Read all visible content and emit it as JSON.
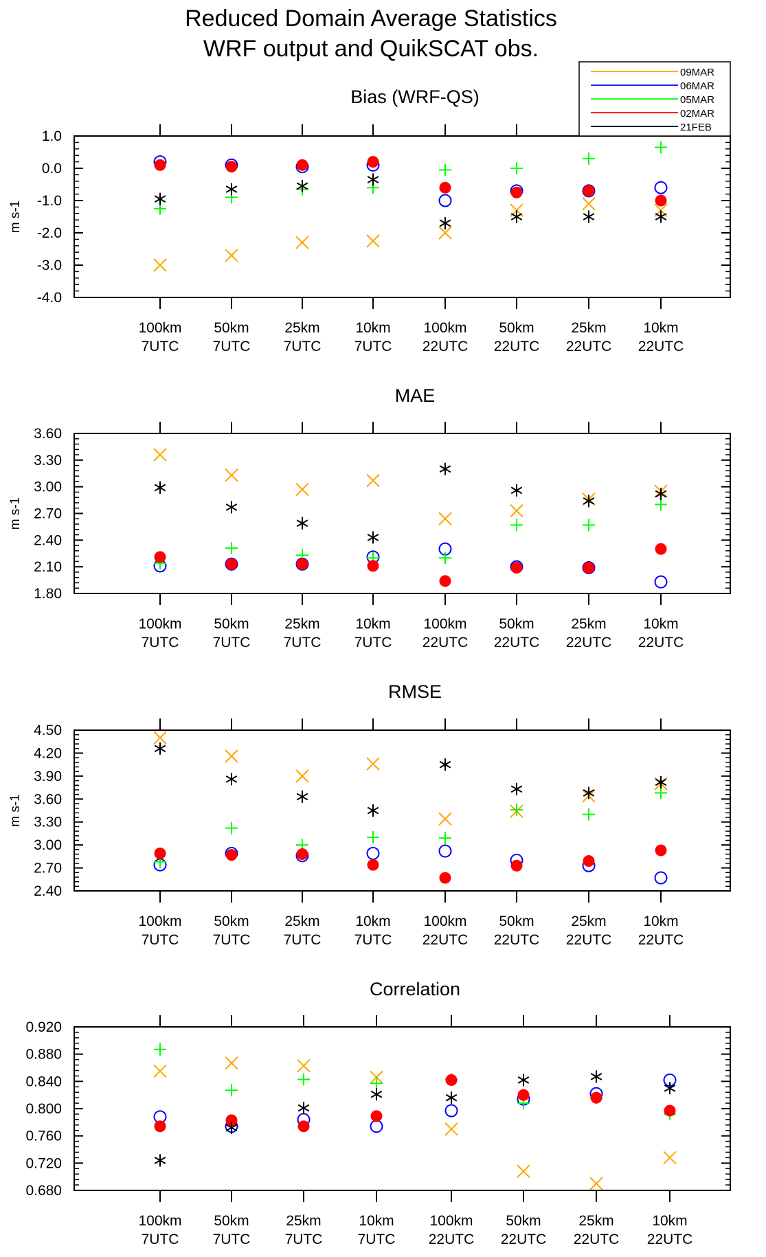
{
  "figure": {
    "title_line1": "Reduced Domain Average Statistics",
    "title_line2": "WRF output and QuikSCAT obs."
  },
  "legend": {
    "placement": "top-right",
    "entries": [
      {
        "label": "09MAR",
        "color": "#ffa500"
      },
      {
        "label": "06MAR",
        "color": "#0000ff"
      },
      {
        "label": "05MAR",
        "color": "#00ff00"
      },
      {
        "label": "02MAR",
        "color": "#ff0000"
      },
      {
        "label": "21FEB",
        "color": "#000000"
      }
    ]
  },
  "chart_data": [
    {
      "type": "scatter",
      "title": "Bias (WRF-QS)",
      "ylabel": "m s-1",
      "ylim": [
        -4.0,
        1.0
      ],
      "yticks": [
        1.0,
        0.0,
        -1.0,
        -2.0,
        -3.0,
        -4.0
      ],
      "ytick_labels": [
        "1.0",
        "0.0",
        "-1.0",
        "-2.0",
        "-3.0",
        "-4.0"
      ],
      "categories": [
        {
          "top": "100km",
          "bottom": "7UTC"
        },
        {
          "top": "50km",
          "bottom": "7UTC"
        },
        {
          "top": "25km",
          "bottom": "7UTC"
        },
        {
          "top": "10km",
          "bottom": "7UTC"
        },
        {
          "top": "100km",
          "bottom": "22UTC"
        },
        {
          "top": "50km",
          "bottom": "22UTC"
        },
        {
          "top": "25km",
          "bottom": "22UTC"
        },
        {
          "top": "10km",
          "bottom": "22UTC"
        }
      ],
      "series": [
        {
          "name": "09MAR",
          "marker": "x",
          "color": "#ffa500",
          "values": [
            -3.0,
            -2.7,
            -2.3,
            -2.25,
            -2.0,
            -1.3,
            -1.1,
            -1.3
          ]
        },
        {
          "name": "06MAR",
          "marker": "open-circle",
          "color": "#0000ff",
          "values": [
            0.2,
            0.1,
            0.05,
            0.1,
            -1.0,
            -0.7,
            -0.7,
            -0.6
          ]
        },
        {
          "name": "05MAR",
          "marker": "plus",
          "color": "#00ff00",
          "values": [
            -1.25,
            -0.9,
            -0.65,
            -0.6,
            -0.05,
            0.0,
            0.3,
            0.65
          ]
        },
        {
          "name": "02MAR",
          "marker": "filled-circle",
          "color": "#ff0000",
          "values": [
            0.1,
            0.05,
            0.1,
            0.2,
            -0.6,
            -0.75,
            -0.7,
            -1.0
          ]
        },
        {
          "name": "21FEB",
          "marker": "asterisk",
          "color": "#000000",
          "values": [
            -0.95,
            -0.65,
            -0.55,
            -0.35,
            -1.7,
            -1.5,
            -1.5,
            -1.5
          ]
        }
      ]
    },
    {
      "type": "scatter",
      "title": "MAE",
      "ylabel": "m s-1",
      "ylim": [
        1.8,
        3.6
      ],
      "yticks": [
        3.6,
        3.3,
        3.0,
        2.7,
        2.4,
        2.1,
        1.8
      ],
      "ytick_labels": [
        "3.60",
        "3.30",
        "3.00",
        "2.70",
        "2.40",
        "2.10",
        "1.80"
      ],
      "categories": [
        {
          "top": "100km",
          "bottom": "7UTC"
        },
        {
          "top": "50km",
          "bottom": "7UTC"
        },
        {
          "top": "25km",
          "bottom": "7UTC"
        },
        {
          "top": "10km",
          "bottom": "7UTC"
        },
        {
          "top": "100km",
          "bottom": "22UTC"
        },
        {
          "top": "50km",
          "bottom": "22UTC"
        },
        {
          "top": "25km",
          "bottom": "22UTC"
        },
        {
          "top": "10km",
          "bottom": "22UTC"
        }
      ],
      "series": [
        {
          "name": "09MAR",
          "marker": "x",
          "color": "#ffa500",
          "values": [
            3.36,
            3.13,
            2.97,
            3.07,
            2.64,
            2.73,
            2.86,
            2.95
          ]
        },
        {
          "name": "06MAR",
          "marker": "open-circle",
          "color": "#0000ff",
          "values": [
            2.11,
            2.13,
            2.13,
            2.21,
            2.3,
            2.1,
            2.09,
            1.93
          ]
        },
        {
          "name": "05MAR",
          "marker": "plus",
          "color": "#00ff00",
          "values": [
            2.14,
            2.31,
            2.23,
            2.2,
            2.2,
            2.57,
            2.57,
            2.8
          ]
        },
        {
          "name": "02MAR",
          "marker": "filled-circle",
          "color": "#ff0000",
          "values": [
            2.21,
            2.13,
            2.13,
            2.11,
            1.94,
            2.09,
            2.09,
            2.3
          ]
        },
        {
          "name": "21FEB",
          "marker": "asterisk",
          "color": "#000000",
          "values": [
            2.99,
            2.77,
            2.59,
            2.43,
            3.2,
            2.96,
            2.84,
            2.92
          ]
        }
      ]
    },
    {
      "type": "scatter",
      "title": "RMSE",
      "ylabel": "m s-1",
      "ylim": [
        2.4,
        4.5
      ],
      "yticks": [
        4.5,
        4.2,
        3.9,
        3.6,
        3.3,
        3.0,
        2.7,
        2.4
      ],
      "ytick_labels": [
        "4.50",
        "4.20",
        "3.90",
        "3.60",
        "3.30",
        "3.00",
        "2.70",
        "2.40"
      ],
      "categories": [
        {
          "top": "100km",
          "bottom": "7UTC"
        },
        {
          "top": "50km",
          "bottom": "7UTC"
        },
        {
          "top": "25km",
          "bottom": "7UTC"
        },
        {
          "top": "10km",
          "bottom": "7UTC"
        },
        {
          "top": "100km",
          "bottom": "22UTC"
        },
        {
          "top": "50km",
          "bottom": "22UTC"
        },
        {
          "top": "25km",
          "bottom": "22UTC"
        },
        {
          "top": "10km",
          "bottom": "22UTC"
        }
      ],
      "series": [
        {
          "name": "09MAR",
          "marker": "x",
          "color": "#ffa500",
          "values": [
            4.4,
            4.16,
            3.9,
            4.06,
            3.34,
            3.44,
            3.64,
            3.8
          ]
        },
        {
          "name": "06MAR",
          "marker": "open-circle",
          "color": "#0000ff",
          "values": [
            2.74,
            2.89,
            2.86,
            2.89,
            2.92,
            2.8,
            2.73,
            2.57
          ]
        },
        {
          "name": "05MAR",
          "marker": "plus",
          "color": "#00ff00",
          "values": [
            2.78,
            3.22,
            3.0,
            3.1,
            3.09,
            3.46,
            3.4,
            3.68
          ]
        },
        {
          "name": "02MAR",
          "marker": "filled-circle",
          "color": "#ff0000",
          "values": [
            2.89,
            2.87,
            2.88,
            2.74,
            2.57,
            2.73,
            2.79,
            2.93
          ]
        },
        {
          "name": "21FEB",
          "marker": "asterisk",
          "color": "#000000",
          "values": [
            4.26,
            3.86,
            3.63,
            3.45,
            4.05,
            3.73,
            3.68,
            3.82
          ]
        }
      ]
    },
    {
      "type": "scatter",
      "title": "Correlation",
      "ylabel": "",
      "ylim": [
        0.68,
        0.92
      ],
      "yticks": [
        0.92,
        0.88,
        0.84,
        0.8,
        0.76,
        0.72,
        0.68
      ],
      "ytick_labels": [
        "0.920",
        "0.880",
        "0.840",
        "0.800",
        "0.760",
        "0.720",
        "0.680"
      ],
      "categories": [
        {
          "top": "100km",
          "bottom": "7UTC"
        },
        {
          "top": "50km",
          "bottom": "7UTC"
        },
        {
          "top": "25km",
          "bottom": "7UTC"
        },
        {
          "top": "10km",
          "bottom": "7UTC"
        },
        {
          "top": "100km",
          "bottom": "22UTC"
        },
        {
          "top": "50km",
          "bottom": "22UTC"
        },
        {
          "top": "25km",
          "bottom": "22UTC"
        },
        {
          "top": "10km",
          "bottom": "22UTC"
        }
      ],
      "series": [
        {
          "name": "09MAR",
          "marker": "x",
          "color": "#ffa500",
          "values": [
            0.855,
            0.867,
            0.863,
            0.846,
            0.77,
            0.708,
            0.69,
            0.728
          ]
        },
        {
          "name": "06MAR",
          "marker": "open-circle",
          "color": "#0000ff",
          "values": [
            0.788,
            0.774,
            0.784,
            0.774,
            0.797,
            0.814,
            0.822,
            0.842
          ]
        },
        {
          "name": "05MAR",
          "marker": "plus",
          "color": "#00ff00",
          "values": [
            0.887,
            0.827,
            0.843,
            0.837,
            0.843,
            0.808,
            0.816,
            0.792
          ]
        },
        {
          "name": "02MAR",
          "marker": "filled-circle",
          "color": "#ff0000",
          "values": [
            0.774,
            0.783,
            0.774,
            0.789,
            0.842,
            0.82,
            0.816,
            0.797
          ]
        },
        {
          "name": "21FEB",
          "marker": "asterisk",
          "color": "#000000",
          "values": [
            0.724,
            0.772,
            0.801,
            0.821,
            0.816,
            0.842,
            0.847,
            0.83
          ]
        }
      ]
    }
  ]
}
